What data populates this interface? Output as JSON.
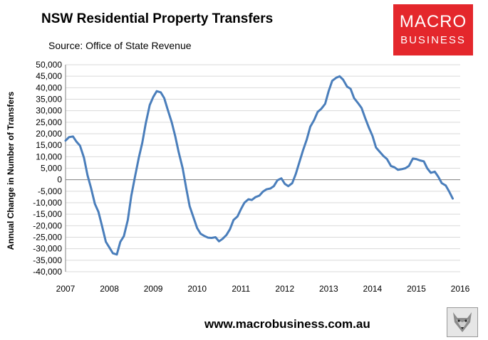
{
  "header": {
    "title": "NSW Residential Property Transfers",
    "source": "Source: Office of State Revenue"
  },
  "logo": {
    "line1": "MACRO",
    "line2": "BUSINESS"
  },
  "footer": {
    "url": "www.macrobusiness.com.au"
  },
  "colors": {
    "line": "#4a7ebb",
    "gridline": "#d9d9d9",
    "axis": "#808080",
    "logo_bg": "#e4272c"
  },
  "chart_data": {
    "type": "line",
    "title": "NSW Residential Property Transfers",
    "ylabel": "Annual Change in Number of Transfers",
    "xlabel": "",
    "xlim": [
      2007,
      2016
    ],
    "ylim": [
      -40000,
      50000
    ],
    "ytick_step": 5000,
    "x_ticks": [
      "2007",
      "2008",
      "2009",
      "2010",
      "2011",
      "2012",
      "2013",
      "2014",
      "2015",
      "2016"
    ],
    "y_ticks": [
      "50,000",
      "45,000",
      "40,000",
      "35,000",
      "30,000",
      "25,000",
      "20,000",
      "15,000",
      "10,000",
      "5,000",
      "0",
      "-5,000",
      "-10,000",
      "-15,000",
      "-20,000",
      "-25,000",
      "-30,000",
      "-35,000",
      "-40,000"
    ],
    "grid": "horizontal",
    "legend": "none",
    "series": [
      {
        "x": [
          2007.0,
          2007.08,
          2007.17,
          2007.25,
          2007.33,
          2007.42,
          2007.5,
          2007.58,
          2007.67,
          2007.75,
          2007.83,
          2007.92,
          2008.0,
          2008.08,
          2008.17,
          2008.25,
          2008.33,
          2008.42,
          2008.5,
          2008.58,
          2008.67,
          2008.75,
          2008.83,
          2008.92,
          2009.0,
          2009.08,
          2009.17,
          2009.25,
          2009.33,
          2009.42,
          2009.5,
          2009.58,
          2009.67,
          2009.75,
          2009.83,
          2009.92,
          2010.0,
          2010.08,
          2010.17,
          2010.25,
          2010.33,
          2010.42,
          2010.5,
          2010.58,
          2010.67,
          2010.75,
          2010.83,
          2010.92,
          2011.0,
          2011.08,
          2011.17,
          2011.25,
          2011.33,
          2011.42,
          2011.5,
          2011.58,
          2011.67,
          2011.75,
          2011.83,
          2011.92,
          2012.0,
          2012.08,
          2012.17,
          2012.25,
          2012.33,
          2012.42,
          2012.5,
          2012.58,
          2012.67,
          2012.75,
          2012.83,
          2012.92,
          2013.0,
          2013.08,
          2013.17,
          2013.25,
          2013.33,
          2013.42,
          2013.5,
          2013.58,
          2013.67,
          2013.75,
          2013.83,
          2013.92,
          2014.0,
          2014.08,
          2014.17,
          2014.25,
          2014.33,
          2014.42,
          2014.5,
          2014.58,
          2014.67,
          2014.75,
          2014.83,
          2014.92,
          2015.0,
          2015.08,
          2015.17,
          2015.25,
          2015.33,
          2015.42,
          2015.5,
          2015.58,
          2015.67,
          2015.75,
          2015.83
        ],
        "y": [
          17000,
          18500,
          18800,
          16500,
          14800,
          9500,
          2000,
          -3500,
          -10500,
          -14000,
          -20000,
          -27000,
          -29500,
          -32000,
          -32500,
          -27000,
          -24500,
          -17500,
          -7000,
          1000,
          9500,
          16000,
          24500,
          32500,
          36000,
          38500,
          38000,
          35500,
          30500,
          25000,
          19000,
          12000,
          5000,
          -3500,
          -11500,
          -16500,
          -21000,
          -23500,
          -24500,
          -25200,
          -25300,
          -25000,
          -26800,
          -25700,
          -24000,
          -21500,
          -17500,
          -16000,
          -12800,
          -10000,
          -8500,
          -8800,
          -7600,
          -6900,
          -5200,
          -4200,
          -3800,
          -2800,
          -300,
          600,
          -1800,
          -2800,
          -1500,
          2500,
          7500,
          13000,
          17500,
          23000,
          26000,
          29500,
          30800,
          33000,
          38500,
          43000,
          44300,
          45000,
          43500,
          40500,
          39500,
          35500,
          33300,
          31200,
          27000,
          22500,
          19000,
          14000,
          12000,
          10300,
          9000,
          6000,
          5400,
          4300,
          4600,
          5000,
          6000,
          9200,
          9000,
          8400,
          8000,
          4900,
          3000,
          3500,
          1300,
          -1500,
          -2500,
          -5200,
          -8200
        ]
      }
    ]
  }
}
